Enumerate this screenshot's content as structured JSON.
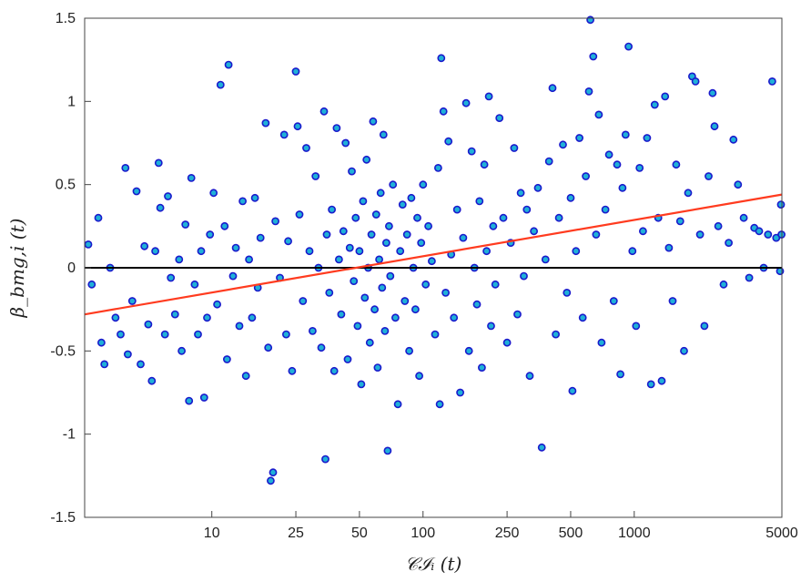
{
  "chart_data": {
    "type": "scatter",
    "xscale": "log",
    "xlim": [
      2.5,
      5000
    ],
    "ylim": [
      -1.5,
      1.5
    ],
    "xticks": [
      10,
      25,
      50,
      100,
      250,
      500,
      1000,
      5000
    ],
    "xtick_labels": [
      "10",
      "25",
      "50",
      "100",
      "250",
      "500",
      "1000",
      "5000"
    ],
    "yticks": [
      -1.5,
      -1,
      -0.5,
      0,
      0.5,
      1,
      1.5
    ],
    "ytick_labels": [
      "-1.5",
      "-1",
      "-0.5",
      "0",
      "0.5",
      "1",
      "1.5"
    ],
    "xlabel": "𝒞ℐᵢ (t)",
    "ylabel": "β_bmg,i (t)",
    "grid": false,
    "colors": {
      "marker_fill": "#1fb0d8",
      "marker_edge": "#1a1acc",
      "fit_line": "#ff3b1f",
      "zero_line": "#000000",
      "axes": "#444444"
    },
    "reference_line": {
      "y": 0
    },
    "fit_line": {
      "x": [
        2.5,
        5000
      ],
      "y": [
        -0.28,
        0.44
      ]
    },
    "points": [
      [
        2.6,
        0.14
      ],
      [
        2.7,
        -0.1
      ],
      [
        2.9,
        0.3
      ],
      [
        3.0,
        -0.45
      ],
      [
        3.1,
        -0.58
      ],
      [
        3.3,
        0.0
      ],
      [
        3.5,
        -0.3
      ],
      [
        3.7,
        -0.4
      ],
      [
        3.9,
        0.6
      ],
      [
        4.0,
        -0.52
      ],
      [
        4.2,
        -0.2
      ],
      [
        4.4,
        0.46
      ],
      [
        4.6,
        -0.58
      ],
      [
        4.8,
        0.13
      ],
      [
        5.0,
        -0.34
      ],
      [
        5.2,
        -0.68
      ],
      [
        5.4,
        0.1
      ],
      [
        5.6,
        0.63
      ],
      [
        5.7,
        0.36
      ],
      [
        6.0,
        -0.4
      ],
      [
        6.2,
        0.43
      ],
      [
        6.4,
        -0.06
      ],
      [
        6.7,
        -0.28
      ],
      [
        7.0,
        0.05
      ],
      [
        7.2,
        -0.5
      ],
      [
        7.5,
        0.26
      ],
      [
        7.8,
        -0.8
      ],
      [
        8.0,
        0.54
      ],
      [
        8.3,
        -0.1
      ],
      [
        8.6,
        -0.4
      ],
      [
        8.9,
        0.1
      ],
      [
        9.2,
        -0.78
      ],
      [
        9.5,
        -0.3
      ],
      [
        9.8,
        0.2
      ],
      [
        10.2,
        0.45
      ],
      [
        10.6,
        -0.22
      ],
      [
        11.0,
        1.1
      ],
      [
        11.5,
        0.25
      ],
      [
        11.8,
        -0.55
      ],
      [
        12.0,
        1.22
      ],
      [
        12.6,
        -0.05
      ],
      [
        13.0,
        0.12
      ],
      [
        13.5,
        -0.35
      ],
      [
        14.0,
        0.4
      ],
      [
        14.5,
        -0.65
      ],
      [
        15.0,
        0.05
      ],
      [
        15.5,
        -0.3
      ],
      [
        16.0,
        0.42
      ],
      [
        16.5,
        -0.12
      ],
      [
        17.0,
        0.18
      ],
      [
        18.0,
        0.87
      ],
      [
        18.5,
        -0.48
      ],
      [
        19.0,
        -1.28
      ],
      [
        19.5,
        -1.23
      ],
      [
        20.0,
        0.28
      ],
      [
        21.0,
        -0.06
      ],
      [
        22.0,
        0.8
      ],
      [
        22.5,
        -0.4
      ],
      [
        23.0,
        0.16
      ],
      [
        24.0,
        -0.62
      ],
      [
        25.0,
        1.18
      ],
      [
        25.5,
        0.85
      ],
      [
        26.0,
        0.32
      ],
      [
        27.0,
        -0.2
      ],
      [
        28.0,
        0.72
      ],
      [
        29.0,
        0.1
      ],
      [
        30.0,
        -0.38
      ],
      [
        31.0,
        0.55
      ],
      [
        32.0,
        0.0
      ],
      [
        33.0,
        -0.48
      ],
      [
        34.0,
        0.94
      ],
      [
        34.5,
        -1.15
      ],
      [
        35.0,
        0.2
      ],
      [
        36.0,
        -0.15
      ],
      [
        37.0,
        0.35
      ],
      [
        38.0,
        -0.62
      ],
      [
        39.0,
        0.84
      ],
      [
        40.0,
        0.05
      ],
      [
        41.0,
        -0.28
      ],
      [
        42.0,
        0.22
      ],
      [
        43.0,
        0.75
      ],
      [
        44.0,
        -0.55
      ],
      [
        45.0,
        0.12
      ],
      [
        46.0,
        0.58
      ],
      [
        47.0,
        -0.08
      ],
      [
        48.0,
        0.3
      ],
      [
        49.0,
        -0.35
      ],
      [
        50.0,
        0.1
      ],
      [
        51.0,
        -0.7
      ],
      [
        52.0,
        0.4
      ],
      [
        53.0,
        -0.18
      ],
      [
        54.0,
        0.65
      ],
      [
        55.0,
        0.0
      ],
      [
        56.0,
        -0.45
      ],
      [
        57.0,
        0.2
      ],
      [
        58.0,
        0.88
      ],
      [
        59.0,
        -0.25
      ],
      [
        60.0,
        0.32
      ],
      [
        61.0,
        -0.6
      ],
      [
        62.0,
        0.05
      ],
      [
        63.0,
        0.45
      ],
      [
        64.0,
        -0.12
      ],
      [
        65.0,
        0.8
      ],
      [
        66.0,
        -0.38
      ],
      [
        67.0,
        0.15
      ],
      [
        68.0,
        -1.1
      ],
      [
        69.0,
        0.25
      ],
      [
        70.0,
        -0.05
      ],
      [
        72.0,
        0.5
      ],
      [
        74.0,
        -0.3
      ],
      [
        76.0,
        -0.82
      ],
      [
        78.0,
        0.1
      ],
      [
        80.0,
        0.38
      ],
      [
        82.0,
        -0.2
      ],
      [
        84.0,
        0.2
      ],
      [
        86.0,
        -0.5
      ],
      [
        88.0,
        0.42
      ],
      [
        90.0,
        0.0
      ],
      [
        92.0,
        -0.25
      ],
      [
        94.0,
        0.3
      ],
      [
        96.0,
        -0.65
      ],
      [
        98.0,
        0.15
      ],
      [
        100.0,
        0.5
      ],
      [
        103.0,
        -0.1
      ],
      [
        106.0,
        0.25
      ],
      [
        110.0,
        0.04
      ],
      [
        114.0,
        -0.4
      ],
      [
        118.0,
        0.6
      ],
      [
        120.0,
        -0.82
      ],
      [
        122.0,
        1.26
      ],
      [
        125.0,
        0.94
      ],
      [
        128.0,
        -0.15
      ],
      [
        132.0,
        0.76
      ],
      [
        136.0,
        0.08
      ],
      [
        140.0,
        -0.3
      ],
      [
        145.0,
        0.35
      ],
      [
        150.0,
        -0.75
      ],
      [
        155.0,
        0.18
      ],
      [
        160.0,
        0.99
      ],
      [
        165.0,
        -0.5
      ],
      [
        170.0,
        0.7
      ],
      [
        175.0,
        0.0
      ],
      [
        180.0,
        -0.22
      ],
      [
        185.0,
        0.4
      ],
      [
        190.0,
        -0.6
      ],
      [
        195.0,
        0.62
      ],
      [
        200.0,
        0.1
      ],
      [
        205.0,
        1.03
      ],
      [
        210.0,
        -0.35
      ],
      [
        215.0,
        0.25
      ],
      [
        220.0,
        -0.1
      ],
      [
        230.0,
        0.9
      ],
      [
        240.0,
        0.3
      ],
      [
        250.0,
        -0.45
      ],
      [
        260.0,
        0.15
      ],
      [
        270.0,
        0.72
      ],
      [
        280.0,
        -0.28
      ],
      [
        290.0,
        0.45
      ],
      [
        300.0,
        -0.05
      ],
      [
        310.0,
        0.35
      ],
      [
        320.0,
        -0.65
      ],
      [
        335.0,
        0.22
      ],
      [
        350.0,
        0.48
      ],
      [
        365.0,
        -1.08
      ],
      [
        380.0,
        0.05
      ],
      [
        395.0,
        0.64
      ],
      [
        410.0,
        1.08
      ],
      [
        425.0,
        -0.4
      ],
      [
        440.0,
        0.3
      ],
      [
        460.0,
        0.74
      ],
      [
        480.0,
        -0.15
      ],
      [
        500.0,
        0.42
      ],
      [
        510.0,
        -0.74
      ],
      [
        530.0,
        0.1
      ],
      [
        550.0,
        0.78
      ],
      [
        570.0,
        -0.3
      ],
      [
        590.0,
        0.55
      ],
      [
        610.0,
        1.06
      ],
      [
        620.0,
        1.49
      ],
      [
        640.0,
        1.27
      ],
      [
        660.0,
        0.2
      ],
      [
        680.0,
        0.92
      ],
      [
        700.0,
        -0.45
      ],
      [
        730.0,
        0.35
      ],
      [
        760.0,
        0.68
      ],
      [
        800.0,
        -0.2
      ],
      [
        830.0,
        0.62
      ],
      [
        860.0,
        -0.64
      ],
      [
        880.0,
        0.48
      ],
      [
        910.0,
        0.8
      ],
      [
        940.0,
        1.33
      ],
      [
        980.0,
        0.1
      ],
      [
        1020.0,
        -0.35
      ],
      [
        1060.0,
        0.6
      ],
      [
        1100.0,
        0.22
      ],
      [
        1150.0,
        0.78
      ],
      [
        1200.0,
        -0.7
      ],
      [
        1250.0,
        0.98
      ],
      [
        1300.0,
        0.3
      ],
      [
        1350.0,
        -0.68
      ],
      [
        1400.0,
        1.03
      ],
      [
        1460.0,
        0.12
      ],
      [
        1520.0,
        -0.2
      ],
      [
        1580.0,
        0.62
      ],
      [
        1650.0,
        0.28
      ],
      [
        1720.0,
        -0.5
      ],
      [
        1800.0,
        0.45
      ],
      [
        1880.0,
        1.15
      ],
      [
        1950.0,
        1.12
      ],
      [
        2050.0,
        0.2
      ],
      [
        2150.0,
        -0.35
      ],
      [
        2250.0,
        0.55
      ],
      [
        2350.0,
        1.05
      ],
      [
        2400.0,
        0.85
      ],
      [
        2500.0,
        0.25
      ],
      [
        2650.0,
        -0.1
      ],
      [
        2800.0,
        0.15
      ],
      [
        2950.0,
        0.77
      ],
      [
        3100.0,
        0.5
      ],
      [
        3300.0,
        0.3
      ],
      [
        3500.0,
        -0.06
      ],
      [
        3700.0,
        0.24
      ],
      [
        3900.0,
        0.22
      ],
      [
        4100.0,
        0.0
      ],
      [
        4300.0,
        0.2
      ],
      [
        4500.0,
        1.12
      ],
      [
        4700.0,
        0.18
      ],
      [
        4900.0,
        -0.02
      ],
      [
        4950.0,
        0.38
      ],
      [
        4980.0,
        0.2
      ]
    ]
  }
}
